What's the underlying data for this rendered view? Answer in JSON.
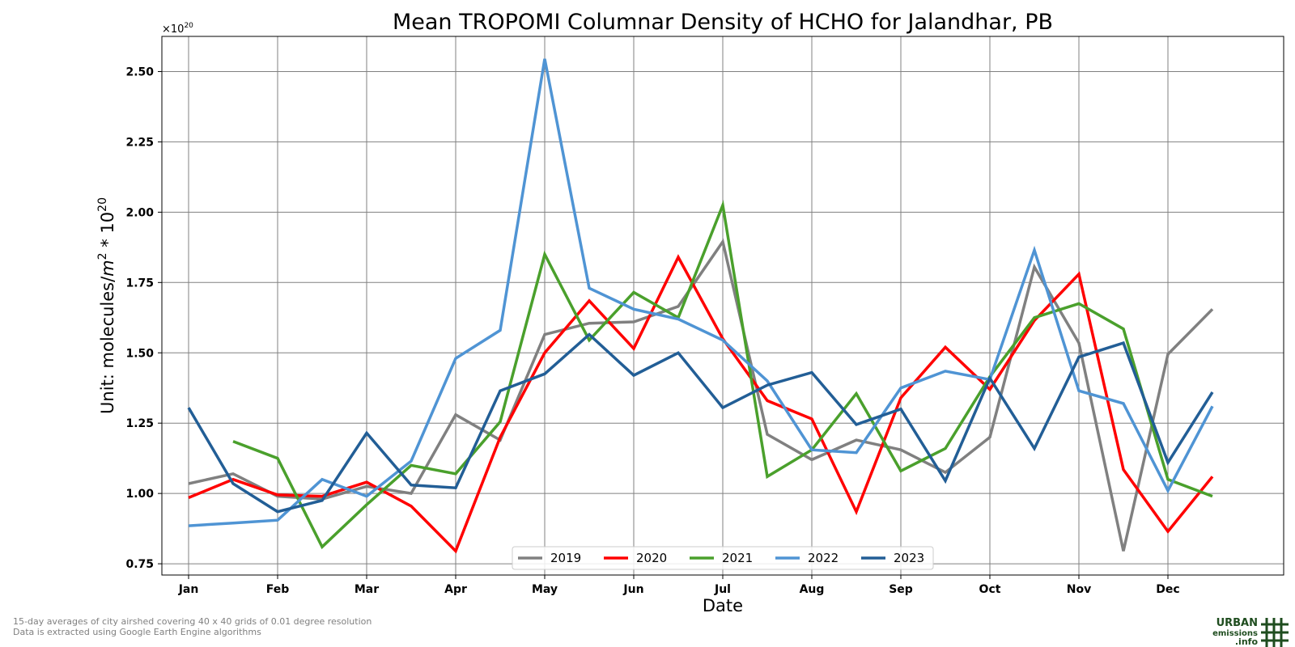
{
  "chart_data": {
    "type": "line",
    "title": "Mean TROPOMI Columnar Density of HCHO for Jalandhar, PB",
    "xlabel": "Date",
    "ylabel": "Unit: molecules/m² * 10²⁰",
    "ylabel_parts": {
      "prefix": "Unit: molecules/",
      "unit_var": "m",
      "unit_pow": "2",
      "mid": " * 10",
      "exp_pow": "20"
    },
    "offset_text": {
      "base": "×10",
      "pow": "20"
    },
    "ylim": [
      0.71,
      2.625
    ],
    "yticks": [
      0.75,
      1.0,
      1.25,
      1.5,
      1.75,
      2.0,
      2.25,
      2.5
    ],
    "ytick_labels": [
      "0.75",
      "1.00",
      "1.25",
      "1.50",
      "1.75",
      "2.00",
      "2.25",
      "2.50"
    ],
    "xlim": [
      -0.6,
      24.6
    ],
    "xtick_positions": [
      0,
      2,
      4,
      6,
      8,
      10,
      12,
      14,
      16,
      18,
      20,
      22
    ],
    "xtick_labels": [
      "Jan",
      "Feb",
      "Mar",
      "Apr",
      "May",
      "Jun",
      "Jul",
      "Aug",
      "Sep",
      "Oct",
      "Nov",
      "Dec"
    ],
    "grid": true,
    "legend_position": "lower center",
    "series": [
      {
        "name": "2019",
        "color": "#808080",
        "start": 0,
        "values": [
          1.035,
          1.07,
          0.99,
          0.98,
          1.025,
          1.0,
          1.28,
          1.19,
          1.565,
          1.605,
          1.61,
          1.665,
          1.895,
          1.21,
          1.12,
          1.19,
          1.155,
          1.075,
          1.2,
          1.805,
          1.535,
          0.795,
          1.495,
          1.655
        ]
      },
      {
        "name": "2020",
        "color": "#ff0000",
        "start": 0,
        "values": [
          0.985,
          1.05,
          0.995,
          0.99,
          1.04,
          0.955,
          0.795,
          1.2,
          1.5,
          1.685,
          1.515,
          1.84,
          1.55,
          1.33,
          1.265,
          0.935,
          1.34,
          1.52,
          1.37,
          1.615,
          1.78,
          1.085,
          0.865,
          1.06
        ]
      },
      {
        "name": "2021",
        "color": "#4aa02c",
        "start": 1,
        "values": [
          1.185,
          1.125,
          0.81,
          0.96,
          1.1,
          1.07,
          1.255,
          1.85,
          1.545,
          1.715,
          1.625,
          2.025,
          1.06,
          1.155,
          1.355,
          1.08,
          1.16,
          1.415,
          1.625,
          1.675,
          1.585,
          1.05,
          0.99
        ]
      },
      {
        "name": "2022",
        "color": "#4f94d4",
        "start": 0,
        "values": [
          0.885,
          0.895,
          0.905,
          1.05,
          0.99,
          1.115,
          1.48,
          1.58,
          2.545,
          1.73,
          1.655,
          1.62,
          1.545,
          1.4,
          1.155,
          1.145,
          1.375,
          1.435,
          1.405,
          1.865,
          1.365,
          1.32,
          1.01,
          1.31
        ]
      },
      {
        "name": "2023",
        "color": "#225e96",
        "start": 0,
        "values": [
          1.305,
          1.035,
          0.935,
          0.975,
          1.215,
          1.03,
          1.02,
          1.365,
          1.425,
          1.565,
          1.42,
          1.5,
          1.305,
          1.385,
          1.43,
          1.245,
          1.3,
          1.045,
          1.41,
          1.16,
          1.485,
          1.535,
          1.11,
          1.36
        ]
      }
    ]
  },
  "footnotes": [
    "15-day averages of city airshed covering 40 x 40 grids of 0.01 degree resolution",
    "Data is extracted using Google Earth Engine algorithms"
  ],
  "logo": {
    "line1": "URBAN",
    "line2": "emissions",
    "line3": ".info",
    "color": "#1f4d1f"
  }
}
